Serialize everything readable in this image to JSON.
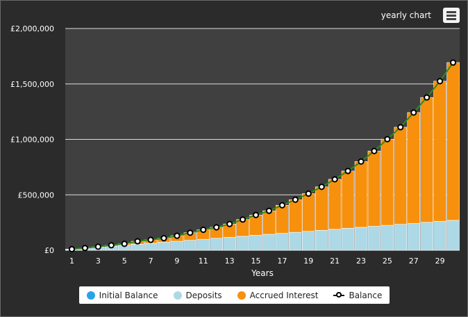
{
  "chart_title": "yearly chart",
  "menu_icon": "hamburger-menu-icon",
  "colors": {
    "initial_balance": "#29a3e6",
    "deposits": "#add8e6",
    "accrued_interest": "#f7900d",
    "balance_line": "#2e8b1a",
    "plot_background": "#404040",
    "gridline": "#dddddd"
  },
  "legend": [
    {
      "key": "initial_balance",
      "label": "Initial Balance"
    },
    {
      "key": "deposits",
      "label": "Deposits"
    },
    {
      "key": "accrued_interest",
      "label": "Accrued Interest"
    },
    {
      "key": "balance",
      "label": "Balance"
    }
  ],
  "chart_data": {
    "type": "bar",
    "stacked": true,
    "xlabel": "Years",
    "ylabel": "",
    "ylim": [
      0,
      2000000
    ],
    "y_ticks": [
      0,
      500000,
      1000000,
      1500000,
      2000000
    ],
    "y_tick_labels": [
      "£0",
      "£500,000",
      "£1,000,000",
      "£1,500,000",
      "£2,000,000"
    ],
    "x": [
      1,
      2,
      3,
      4,
      5,
      6,
      7,
      8,
      9,
      10,
      11,
      12,
      13,
      14,
      15,
      16,
      17,
      18,
      19,
      20,
      21,
      22,
      23,
      24,
      25,
      26,
      27,
      28,
      29,
      30
    ],
    "x_tick_labels": [
      "1",
      "3",
      "5",
      "7",
      "9",
      "11",
      "13",
      "15",
      "17",
      "19",
      "21",
      "23",
      "25",
      "27",
      "29"
    ],
    "x_tick_values": [
      1,
      3,
      5,
      7,
      9,
      11,
      13,
      15,
      17,
      19,
      21,
      23,
      25,
      27,
      29
    ],
    "grid": true,
    "legend_position": "bottom",
    "series": [
      {
        "name": "Initial Balance",
        "type": "bar",
        "values": [
          0,
          0,
          0,
          0,
          0,
          0,
          0,
          0,
          0,
          0,
          0,
          0,
          0,
          0,
          0,
          0,
          0,
          0,
          0,
          0,
          0,
          0,
          0,
          0,
          0,
          0,
          0,
          0,
          0,
          0
        ]
      },
      {
        "name": "Deposits",
        "type": "bar",
        "values": [
          9000,
          18000,
          27000,
          36000,
          45000,
          54000,
          63000,
          72000,
          81000,
          90000,
          99000,
          108000,
          117000,
          126000,
          135000,
          144000,
          153000,
          162000,
          171000,
          180000,
          189000,
          198000,
          207000,
          216000,
          225000,
          234000,
          243000,
          252000,
          261000,
          270000
        ]
      },
      {
        "name": "Accrued Interest",
        "type": "bar",
        "values": [
          1000,
          2000,
          5000,
          9000,
          13000,
          27000,
          31000,
          37000,
          50000,
          68000,
          86000,
          99000,
          120000,
          151000,
          183000,
          212000,
          253000,
          294000,
          340000,
          392000,
          451000,
          517000,
          593000,
          679000,
          777000,
          876000,
          999000,
          1126000,
          1264000,
          1423000
        ]
      },
      {
        "name": "Balance",
        "type": "line",
        "values": [
          10000,
          20000,
          32000,
          45000,
          58000,
          81000,
          94000,
          109000,
          131000,
          158000,
          185000,
          207000,
          237000,
          277000,
          318000,
          356000,
          406000,
          456000,
          511000,
          572000,
          640000,
          715000,
          800000,
          895000,
          1002000,
          1110000,
          1242000,
          1378000,
          1525000,
          1693000
        ]
      }
    ]
  }
}
